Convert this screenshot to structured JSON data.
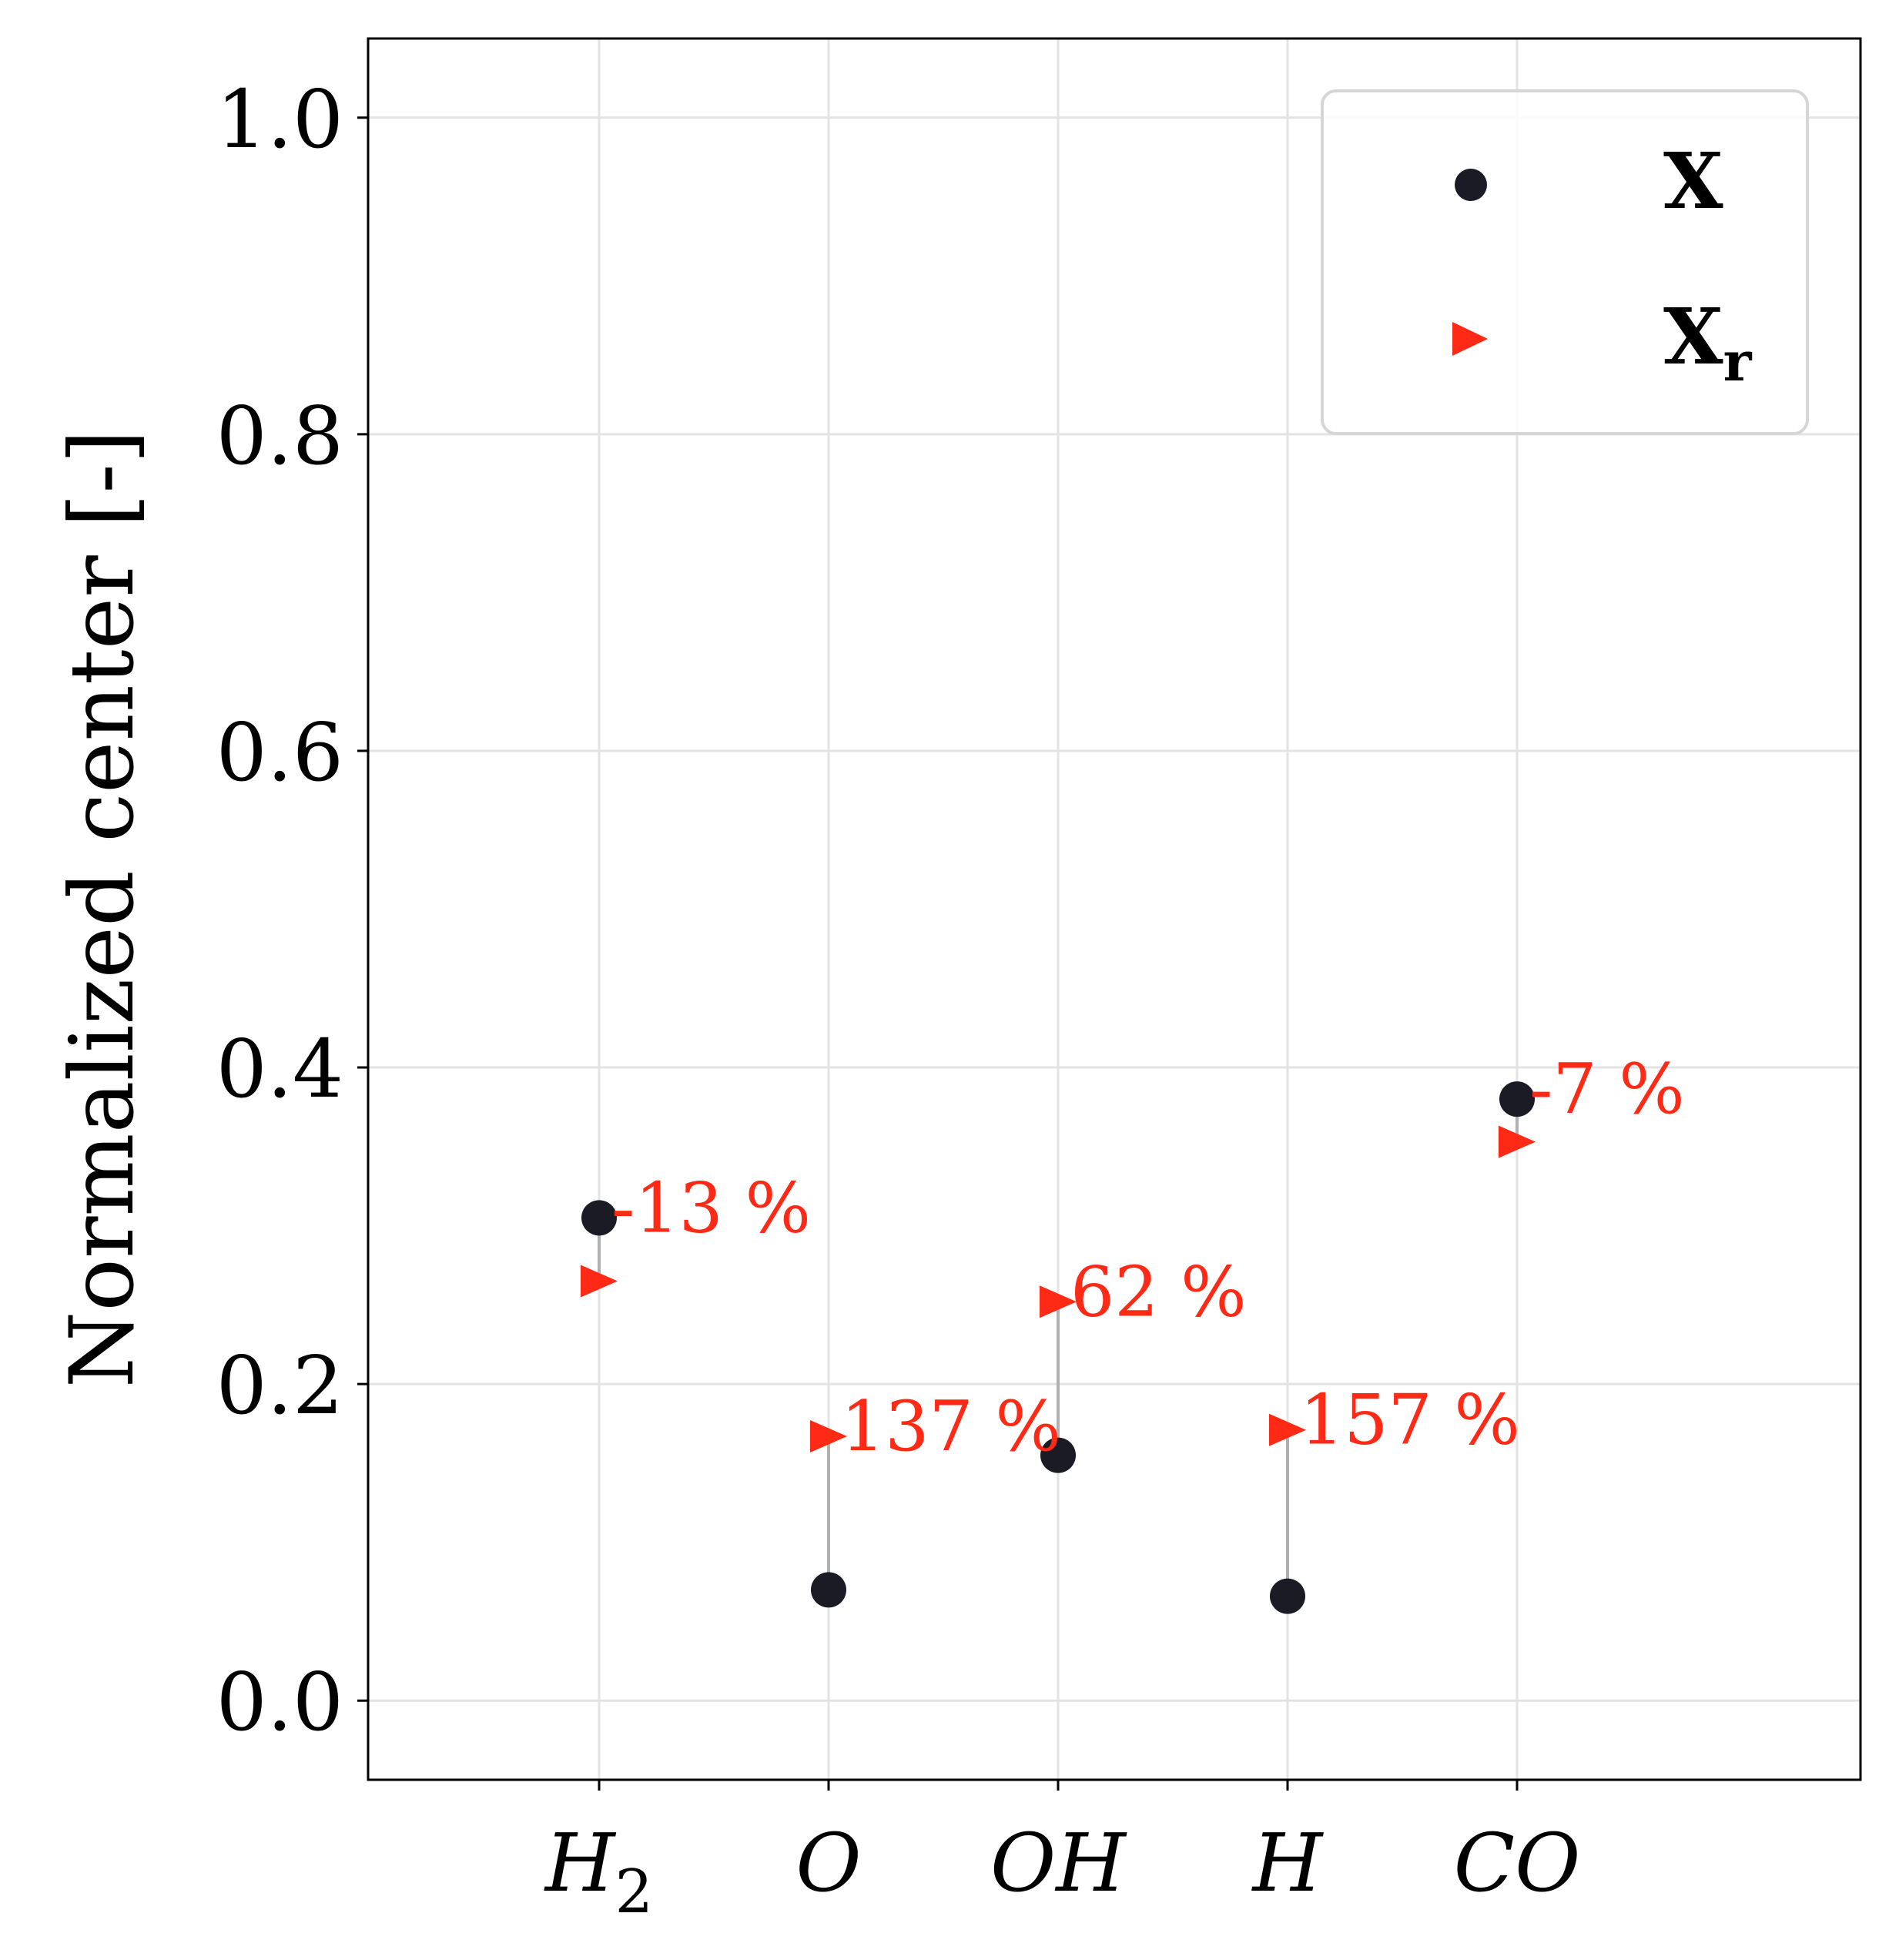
{
  "chart_data": {
    "type": "scatter",
    "categories": [
      "H2",
      "O",
      "OH",
      "H",
      "CO"
    ],
    "series": [
      {
        "name": "X",
        "marker": "circle",
        "color": "#1a1b24",
        "values": [
          0.305,
          0.07,
          0.155,
          0.066,
          0.38
        ]
      },
      {
        "name": "Xr",
        "marker": "triangle-right",
        "color": "#ff2a16",
        "values": [
          0.265,
          0.167,
          0.252,
          0.171,
          0.353
        ]
      }
    ],
    "annotations": [
      "-13 %",
      "137 %",
      "62 %",
      "157 %",
      "-7 %"
    ],
    "annotation_color": "#ff2a16",
    "connector_color": "#b0b0b0",
    "ylabel": "Normalized center  [-]",
    "ylim": [
      -0.05,
      1.05
    ],
    "yticks": [
      "0.0",
      "0.2",
      "0.4",
      "0.6",
      "0.8",
      "1.0"
    ],
    "grid": true,
    "legend_position": "top-right"
  }
}
